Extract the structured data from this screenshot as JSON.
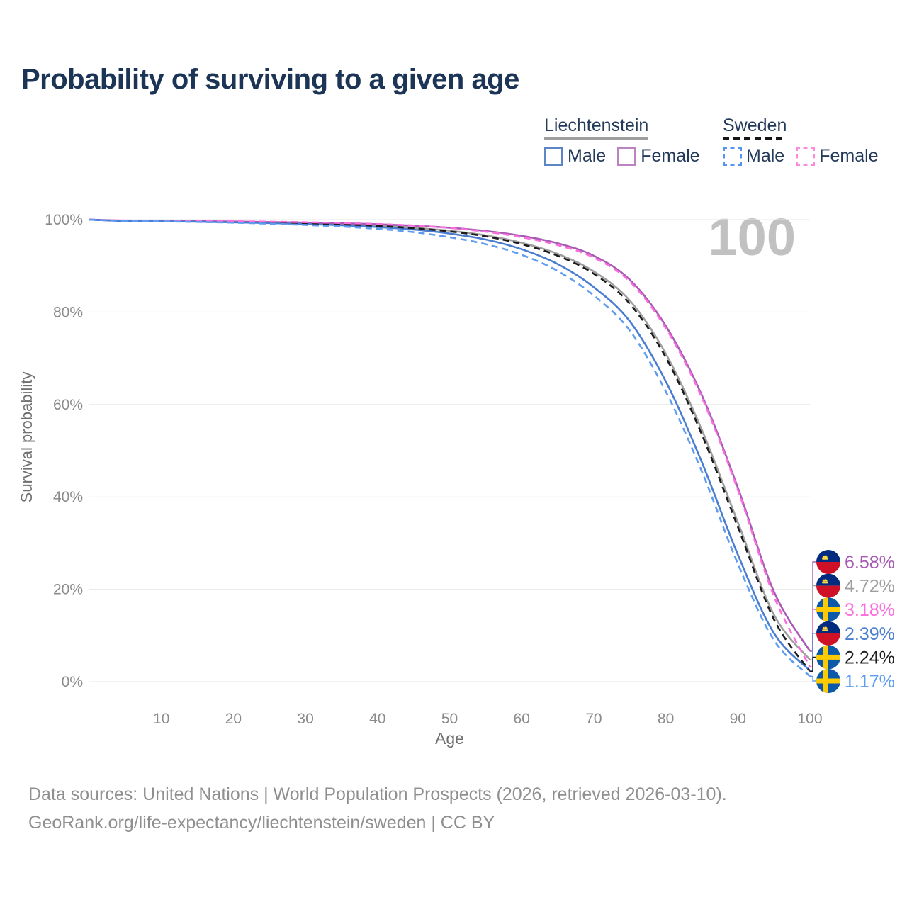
{
  "title": "Probability of surviving to a given age",
  "watermark": "100",
  "legend": {
    "groups": [
      {
        "name": "Liechtenstein",
        "underline_style": "solid",
        "underline_color": "#9e9e9e",
        "items": [
          {
            "label": "Male",
            "box_style": "solid",
            "box_color": "#5c86c6"
          },
          {
            "label": "Female",
            "box_style": "solid",
            "box_color": "#bb84c0"
          }
        ]
      },
      {
        "name": "Sweden",
        "underline_style": "dashed",
        "underline_color": "#161616",
        "items": [
          {
            "label": "Male",
            "box_style": "dashed",
            "box_color": "#5593f3"
          },
          {
            "label": "Female",
            "box_style": "dashed",
            "box_color": "#fc8be0"
          }
        ]
      }
    ]
  },
  "chart_data": {
    "type": "line",
    "title": "Probability of surviving to a given age",
    "xlabel": "Age",
    "ylabel": "Survival probability",
    "xlim": [
      0,
      100
    ],
    "ylim": [
      0,
      100
    ],
    "grid": "horizontal",
    "legend_position": "top-right",
    "hover_age": 100,
    "x_ticks": [
      10,
      20,
      30,
      40,
      50,
      60,
      70,
      80,
      90,
      100
    ],
    "y_ticks": [
      {
        "value": 0,
        "label": "0%"
      },
      {
        "value": 20,
        "label": "20%"
      },
      {
        "value": 40,
        "label": "40%"
      },
      {
        "value": 60,
        "label": "60%"
      },
      {
        "value": 80,
        "label": "80%"
      },
      {
        "value": 100,
        "label": "100%"
      }
    ],
    "ages": [
      0,
      5,
      10,
      15,
      20,
      25,
      30,
      35,
      40,
      45,
      50,
      55,
      60,
      65,
      70,
      75,
      80,
      85,
      90,
      95,
      100
    ],
    "series": [
      {
        "id": "li_total",
        "name": "Liechtenstein Both sexes",
        "country": "Liechtenstein",
        "sex": "Both",
        "color": "#9e9e9e",
        "dash": "solid",
        "values": [
          100,
          99.74,
          99.68,
          99.6,
          99.5,
          99.38,
          99.22,
          99.0,
          98.7,
          98.25,
          97.6,
          96.6,
          95.0,
          92.6,
          88.8,
          82.5,
          71.0,
          54.5,
          34.5,
          14.5,
          4.72
        ]
      },
      {
        "id": "li_female",
        "name": "Liechtenstein Female",
        "country": "Liechtenstein",
        "sex": "Female",
        "color": "#a85ab5",
        "dash": "solid",
        "values": [
          100,
          99.78,
          99.72,
          99.66,
          99.58,
          99.48,
          99.36,
          99.2,
          99.0,
          98.7,
          98.25,
          97.55,
          96.5,
          94.9,
          92.2,
          87.0,
          77.0,
          62.0,
          42.0,
          19.5,
          6.58
        ]
      },
      {
        "id": "li_male",
        "name": "Liechtenstein Male",
        "country": "Liechtenstein",
        "sex": "Male",
        "color": "#4a7dd0",
        "dash": "solid",
        "values": [
          100,
          99.7,
          99.64,
          99.55,
          99.42,
          99.26,
          99.05,
          98.78,
          98.4,
          97.85,
          97.0,
          95.7,
          93.6,
          90.4,
          85.4,
          78.0,
          65.0,
          47.5,
          27.5,
          10.5,
          2.39
        ]
      },
      {
        "id": "se_total",
        "name": "Sweden Both sexes",
        "country": "Sweden",
        "sex": "Both",
        "color": "#1c1c1c",
        "dash": "dashed",
        "values": [
          100,
          99.76,
          99.7,
          99.62,
          99.52,
          99.4,
          99.24,
          99.0,
          98.65,
          98.15,
          97.45,
          96.4,
          94.7,
          92.2,
          88.3,
          81.8,
          70.2,
          53.5,
          33.5,
          13.5,
          2.24
        ]
      },
      {
        "id": "se_female",
        "name": "Sweden Female",
        "country": "Sweden",
        "sex": "Female",
        "color": "#fa6ede",
        "dash": "dashed",
        "values": [
          100,
          99.82,
          99.78,
          99.72,
          99.65,
          99.56,
          99.44,
          99.28,
          99.05,
          98.72,
          98.2,
          97.4,
          96.2,
          94.5,
          91.8,
          86.6,
          76.5,
          61.5,
          41.5,
          18.5,
          3.18
        ]
      },
      {
        "id": "se_male",
        "name": "Sweden Male",
        "country": "Sweden",
        "sex": "Male",
        "color": "#5e9cf2",
        "dash": "dashed",
        "values": [
          100,
          99.72,
          99.62,
          99.5,
          99.34,
          99.12,
          98.85,
          98.5,
          98.0,
          97.3,
          96.2,
          94.7,
          92.4,
          88.9,
          83.6,
          76.0,
          62.8,
          45.5,
          25.5,
          9.0,
          1.17
        ]
      }
    ],
    "end_labels": [
      {
        "series": "li_female",
        "value": "6.58%",
        "color": "#a85ab5",
        "flag": "liechtenstein"
      },
      {
        "series": "li_total",
        "value": "4.72%",
        "color": "#9e9e9e",
        "flag": "liechtenstein"
      },
      {
        "series": "se_female",
        "value": "3.18%",
        "color": "#fa6ede",
        "flag": "sweden"
      },
      {
        "series": "li_male",
        "value": "2.39%",
        "color": "#4a7dd0",
        "flag": "liechtenstein"
      },
      {
        "series": "se_total",
        "value": "2.24%",
        "color": "#1c1c1c",
        "flag": "sweden"
      },
      {
        "series": "se_male",
        "value": "1.17%",
        "color": "#5e9cf2",
        "flag": "sweden"
      }
    ]
  },
  "footer": {
    "line1": "Data sources: United Nations | World Population Prospects (2026, retrieved 2026-03-10).",
    "line2": "GeoRank.org/life-expectancy/liechtenstein/sweden | CC BY"
  }
}
